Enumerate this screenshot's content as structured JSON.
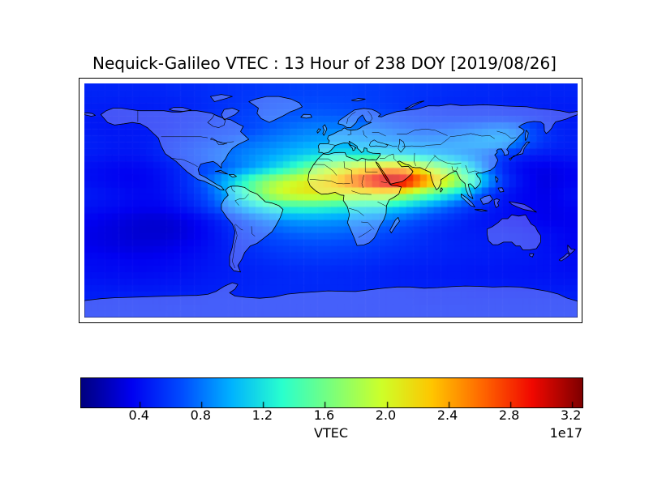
{
  "title": "Nequick-Galileo VTEC : 13 Hour of 238 DOY [2019/08/26]",
  "colors": {
    "background": "#ffffff",
    "frame": "#000000",
    "text": "#000000",
    "coastline": "#000000",
    "land_fill": "rgba(255,255,255,0.27)"
  },
  "colorbar": {
    "label": "VTEC",
    "scale_note": "1e17",
    "tick_labels": [
      "0.4",
      "0.8",
      "1.2",
      "1.6",
      "2.0",
      "2.4",
      "2.8",
      "3.2"
    ],
    "tick_values": [
      0.4,
      0.8,
      1.2,
      1.6,
      2.0,
      2.4,
      2.8,
      3.2
    ],
    "vmin": 0.02,
    "vmax": 3.27,
    "colormap_name": "jet",
    "colormap_stops": [
      [
        0.0,
        "#000080"
      ],
      [
        0.1,
        "#0000f1"
      ],
      [
        0.2,
        "#004cff"
      ],
      [
        0.3,
        "#00b3ff"
      ],
      [
        0.4,
        "#29ffce"
      ],
      [
        0.5,
        "#7bff7b"
      ],
      [
        0.6,
        "#ceff29"
      ],
      [
        0.7,
        "#ffc600"
      ],
      [
        0.8,
        "#ff6800"
      ],
      [
        0.9,
        "#f10800"
      ],
      [
        1.0,
        "#800000"
      ]
    ]
  },
  "chart_data": {
    "type": "heatmap",
    "title": "Nequick-Galileo VTEC : 13 Hour of 238 DOY [2019/08/26]",
    "colorbar_label": "VTEC",
    "scale_factor": "1e17",
    "colormap": "jet",
    "vmin": 0.02,
    "vmax": 3.27,
    "projection": "equirectangular",
    "lon_range": [
      -180,
      180
    ],
    "lat_range": [
      -90,
      90
    ],
    "grid": {
      "lat_start": 85,
      "lat_step": -10,
      "lon_start": -175,
      "lon_step": 10,
      "units": "1e17",
      "values": [
        [
          0.5,
          0.5,
          0.5,
          0.5,
          0.5,
          0.5,
          0.52,
          0.52,
          0.53,
          0.55,
          0.55,
          0.57,
          0.58,
          0.6,
          0.6,
          0.62,
          0.62,
          0.62,
          0.62,
          0.62,
          0.6,
          0.6,
          0.58,
          0.57,
          0.56,
          0.55,
          0.54,
          0.53,
          0.52,
          0.52,
          0.51,
          0.5,
          0.5,
          0.5,
          0.5,
          0.5
        ],
        [
          0.48,
          0.48,
          0.47,
          0.47,
          0.47,
          0.48,
          0.48,
          0.5,
          0.52,
          0.54,
          0.56,
          0.58,
          0.6,
          0.63,
          0.65,
          0.66,
          0.66,
          0.66,
          0.65,
          0.64,
          0.62,
          0.6,
          0.58,
          0.56,
          0.54,
          0.52,
          0.51,
          0.5,
          0.5,
          0.5,
          0.49,
          0.48,
          0.48,
          0.47,
          0.47,
          0.47
        ],
        [
          0.45,
          0.44,
          0.44,
          0.45,
          0.46,
          0.47,
          0.48,
          0.5,
          0.52,
          0.55,
          0.58,
          0.62,
          0.65,
          0.68,
          0.7,
          0.71,
          0.72,
          0.72,
          0.71,
          0.7,
          0.68,
          0.66,
          0.63,
          0.6,
          0.58,
          0.56,
          0.55,
          0.54,
          0.54,
          0.54,
          0.53,
          0.52,
          0.5,
          0.48,
          0.46,
          0.45
        ],
        [
          0.45,
          0.44,
          0.44,
          0.44,
          0.45,
          0.46,
          0.48,
          0.52,
          0.55,
          0.58,
          0.6,
          0.63,
          0.67,
          0.72,
          0.76,
          0.8,
          0.83,
          0.84,
          0.84,
          0.83,
          0.81,
          0.78,
          0.75,
          0.72,
          0.7,
          0.7,
          0.72,
          0.75,
          0.78,
          0.82,
          0.85,
          0.8,
          0.68,
          0.56,
          0.5,
          0.47
        ],
        [
          0.48,
          0.46,
          0.45,
          0.45,
          0.46,
          0.5,
          0.54,
          0.58,
          0.63,
          0.67,
          0.71,
          0.75,
          0.79,
          0.83,
          0.87,
          0.91,
          0.94,
          0.96,
          0.97,
          0.96,
          0.94,
          0.92,
          0.89,
          0.87,
          0.85,
          0.85,
          0.87,
          0.9,
          0.94,
          0.98,
          0.96,
          0.85,
          0.68,
          0.57,
          0.51,
          0.48
        ],
        [
          0.46,
          0.44,
          0.43,
          0.43,
          0.45,
          0.5,
          0.56,
          0.62,
          0.68,
          0.74,
          0.79,
          0.84,
          0.89,
          0.94,
          1.0,
          1.06,
          1.12,
          1.16,
          1.19,
          1.2,
          1.2,
          1.18,
          1.15,
          1.1,
          1.05,
          1.0,
          0.95,
          0.89,
          0.82,
          0.72,
          0.61,
          0.52,
          0.47,
          0.45,
          0.44,
          0.45
        ],
        [
          0.4,
          0.38,
          0.36,
          0.36,
          0.38,
          0.42,
          0.48,
          0.55,
          0.62,
          0.68,
          0.75,
          0.85,
          0.95,
          1.08,
          1.22,
          1.4,
          1.6,
          1.78,
          1.92,
          2.05,
          2.18,
          2.3,
          2.4,
          2.28,
          2.05,
          1.82,
          1.6,
          1.35,
          1.05,
          0.75,
          0.52,
          0.4,
          0.34,
          0.32,
          0.33,
          0.36
        ],
        [
          0.4,
          0.38,
          0.36,
          0.35,
          0.36,
          0.4,
          0.46,
          0.55,
          0.68,
          0.85,
          1.05,
          1.3,
          1.55,
          1.75,
          1.9,
          2.0,
          2.1,
          2.2,
          2.38,
          2.65,
          2.9,
          3.15,
          3.25,
          3.1,
          2.72,
          2.38,
          2.1,
          1.75,
          1.35,
          0.95,
          0.62,
          0.45,
          0.36,
          0.3,
          0.32,
          0.35
        ],
        [
          0.45,
          0.42,
          0.4,
          0.38,
          0.38,
          0.4,
          0.45,
          0.52,
          0.62,
          0.78,
          1.0,
          1.3,
          1.6,
          1.85,
          2.0,
          2.08,
          2.12,
          2.1,
          2.05,
          2.02,
          2.0,
          2.05,
          2.0,
          1.85,
          1.65,
          1.45,
          1.25,
          1.05,
          0.82,
          0.6,
          0.46,
          0.39,
          0.35,
          0.32,
          0.35,
          0.4
        ],
        [
          0.42,
          0.4,
          0.38,
          0.36,
          0.35,
          0.36,
          0.4,
          0.46,
          0.55,
          0.68,
          0.82,
          0.98,
          1.12,
          1.25,
          1.32,
          1.35,
          1.35,
          1.32,
          1.28,
          1.25,
          1.22,
          1.2,
          1.15,
          1.05,
          0.95,
          0.85,
          0.75,
          0.65,
          0.56,
          0.48,
          0.42,
          0.38,
          0.35,
          0.33,
          0.33,
          0.36
        ],
        [
          0.35,
          0.32,
          0.3,
          0.28,
          0.26,
          0.26,
          0.28,
          0.32,
          0.38,
          0.46,
          0.55,
          0.65,
          0.75,
          0.83,
          0.88,
          0.92,
          0.93,
          0.92,
          0.9,
          0.88,
          0.85,
          0.82,
          0.78,
          0.72,
          0.66,
          0.6,
          0.55,
          0.5,
          0.45,
          0.42,
          0.4,
          0.38,
          0.36,
          0.34,
          0.33,
          0.34
        ],
        [
          0.32,
          0.3,
          0.28,
          0.26,
          0.25,
          0.25,
          0.26,
          0.3,
          0.35,
          0.42,
          0.5,
          0.57,
          0.63,
          0.68,
          0.72,
          0.75,
          0.76,
          0.76,
          0.75,
          0.73,
          0.7,
          0.67,
          0.64,
          0.6,
          0.56,
          0.52,
          0.49,
          0.47,
          0.46,
          0.45,
          0.45,
          0.44,
          0.42,
          0.4,
          0.38,
          0.35
        ],
        [
          0.33,
          0.31,
          0.3,
          0.29,
          0.29,
          0.3,
          0.32,
          0.35,
          0.38,
          0.43,
          0.48,
          0.52,
          0.56,
          0.6,
          0.62,
          0.64,
          0.65,
          0.65,
          0.64,
          0.63,
          0.61,
          0.59,
          0.57,
          0.55,
          0.53,
          0.51,
          0.5,
          0.49,
          0.48,
          0.47,
          0.47,
          0.46,
          0.44,
          0.42,
          0.39,
          0.36
        ],
        [
          0.38,
          0.37,
          0.36,
          0.35,
          0.35,
          0.36,
          0.37,
          0.39,
          0.41,
          0.44,
          0.47,
          0.5,
          0.52,
          0.54,
          0.56,
          0.57,
          0.58,
          0.58,
          0.57,
          0.56,
          0.55,
          0.54,
          0.52,
          0.51,
          0.5,
          0.49,
          0.48,
          0.47,
          0.46,
          0.46,
          0.45,
          0.45,
          0.44,
          0.42,
          0.41,
          0.39
        ],
        [
          0.4,
          0.39,
          0.39,
          0.38,
          0.38,
          0.39,
          0.4,
          0.41,
          0.43,
          0.45,
          0.46,
          0.48,
          0.49,
          0.5,
          0.51,
          0.52,
          0.52,
          0.52,
          0.51,
          0.51,
          0.5,
          0.49,
          0.48,
          0.47,
          0.47,
          0.46,
          0.45,
          0.45,
          0.44,
          0.44,
          0.43,
          0.43,
          0.42,
          0.42,
          0.41,
          0.4
        ],
        [
          0.44,
          0.44,
          0.43,
          0.43,
          0.43,
          0.44,
          0.44,
          0.45,
          0.46,
          0.47,
          0.48,
          0.49,
          0.5,
          0.51,
          0.52,
          0.52,
          0.52,
          0.52,
          0.52,
          0.51,
          0.51,
          0.5,
          0.49,
          0.49,
          0.48,
          0.48,
          0.47,
          0.47,
          0.46,
          0.46,
          0.46,
          0.45,
          0.45,
          0.45,
          0.44,
          0.44
        ],
        [
          0.48,
          0.48,
          0.48,
          0.48,
          0.48,
          0.48,
          0.49,
          0.49,
          0.49,
          0.5,
          0.5,
          0.5,
          0.51,
          0.51,
          0.51,
          0.51,
          0.51,
          0.51,
          0.51,
          0.51,
          0.5,
          0.5,
          0.5,
          0.5,
          0.49,
          0.49,
          0.49,
          0.49,
          0.48,
          0.48,
          0.48,
          0.48,
          0.48,
          0.48,
          0.48,
          0.48
        ],
        [
          0.5,
          0.5,
          0.5,
          0.5,
          0.5,
          0.5,
          0.5,
          0.5,
          0.5,
          0.5,
          0.5,
          0.5,
          0.5,
          0.5,
          0.5,
          0.5,
          0.5,
          0.5,
          0.5,
          0.5,
          0.5,
          0.5,
          0.5,
          0.5,
          0.5,
          0.5,
          0.5,
          0.5,
          0.5,
          0.5,
          0.5,
          0.5,
          0.5,
          0.5,
          0.5,
          0.5
        ]
      ]
    }
  }
}
